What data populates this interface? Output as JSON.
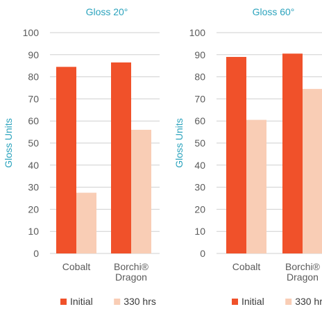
{
  "colors": {
    "initial": "#f0512a",
    "hrs330": "#f9cdb5",
    "title": "#2ba3bd"
  },
  "chart_data": [
    {
      "type": "bar",
      "title": "Gloss 20°",
      "ylabel": "Gloss Units",
      "xlabel": "",
      "ylim": [
        0,
        100
      ],
      "yticks": [
        0,
        10,
        20,
        30,
        40,
        50,
        60,
        70,
        80,
        90,
        100
      ],
      "grid": true,
      "legend": "bottom",
      "categories": [
        [
          "Cobalt"
        ],
        [
          "Borchi®",
          "Dragon"
        ]
      ],
      "series": [
        {
          "name": "Initial",
          "values": [
            84.5,
            86.5
          ]
        },
        {
          "name": "330 hrs",
          "values": [
            27.5,
            56
          ]
        }
      ]
    },
    {
      "type": "bar",
      "title": "Gloss 60°",
      "ylabel": "Gloss Units",
      "xlabel": "",
      "ylim": [
        0,
        100
      ],
      "yticks": [
        0,
        10,
        20,
        30,
        40,
        50,
        60,
        70,
        80,
        90,
        100
      ],
      "grid": true,
      "legend": "bottom",
      "categories": [
        [
          "Cobalt"
        ],
        [
          "Borchi®",
          "Dragon"
        ]
      ],
      "series": [
        {
          "name": "Initial",
          "values": [
            89,
            90.5
          ]
        },
        {
          "name": "330 hrs",
          "values": [
            60.5,
            74.5
          ]
        }
      ]
    }
  ]
}
